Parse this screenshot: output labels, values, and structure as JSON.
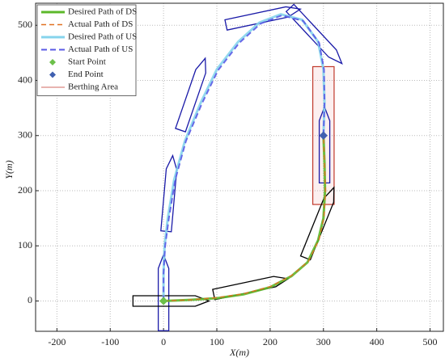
{
  "chart_data": {
    "type": "line",
    "xlabel": "X(m)",
    "ylabel": "Y(m)",
    "xlim": [
      -240,
      525
    ],
    "ylim": [
      -55,
      540
    ],
    "xticks": [
      -200,
      -100,
      0,
      100,
      200,
      300,
      400,
      500
    ],
    "yticks": [
      0,
      100,
      200,
      300,
      400,
      500
    ],
    "grid": true,
    "legend": "upper left",
    "series": [
      {
        "name": "Desired Path of DS",
        "color": "#5cb82a",
        "dash": "none",
        "width": 3,
        "x": [
          0,
          50,
          100,
          150,
          200,
          240,
          270,
          290,
          300,
          303,
          302,
          300
        ],
        "values": [
          0,
          2,
          5,
          12,
          25,
          45,
          70,
          110,
          150,
          200,
          250,
          300
        ]
      },
      {
        "name": "Actual Path of DS",
        "color": "#e07020",
        "dash": "6 4",
        "width": 1.5,
        "x": [
          0,
          50,
          100,
          150,
          200,
          240,
          272,
          292,
          301,
          304,
          302,
          300
        ],
        "values": [
          0,
          2,
          6,
          13,
          26,
          46,
          72,
          112,
          152,
          200,
          250,
          300
        ]
      },
      {
        "name": "Desired Path of US",
        "color": "#86d4ec",
        "dash": "none",
        "width": 3,
        "x": [
          0,
          0,
          2,
          8,
          20,
          40,
          70,
          100,
          140,
          180,
          220,
          260,
          290,
          300,
          302,
          300
        ],
        "values": [
          0,
          50,
          100,
          150,
          220,
          290,
          360,
          420,
          470,
          505,
          520,
          510,
          470,
          420,
          360,
          300
        ]
      },
      {
        "name": "Actual Path of US",
        "color": "#5a5ae6",
        "dash": "7 4",
        "width": 2,
        "x": [
          0,
          0,
          3,
          10,
          22,
          42,
          72,
          102,
          142,
          182,
          222,
          262,
          292,
          301,
          302,
          300
        ],
        "values": [
          0,
          50,
          100,
          150,
          220,
          290,
          358,
          418,
          468,
          503,
          518,
          508,
          468,
          420,
          360,
          300
        ]
      }
    ],
    "start_point": {
      "name": "Start Point",
      "color": "#6cc04a",
      "x": 0,
      "y": 0
    },
    "end_point": {
      "name": "End Point",
      "color": "#4060b0",
      "x": 300,
      "y": 300
    },
    "berthing_area": {
      "name": "Berthing Area",
      "color": "#c0392b",
      "x": [
        280,
        320
      ],
      "y": [
        175,
        425
      ]
    },
    "ships": [
      {
        "x": 0,
        "y": 15,
        "heading": 90,
        "color": "#1a1aa8"
      },
      {
        "x": 11,
        "y": 195,
        "heading": 85,
        "color": "#1a1aa8"
      },
      {
        "x": 55,
        "y": 375,
        "heading": 71,
        "color": "#1a1aa8"
      },
      {
        "x": 187,
        "y": 515,
        "heading": 12,
        "color": "#1a1aa8"
      },
      {
        "x": 286,
        "y": 481,
        "heading": -47,
        "color": "#1a1aa8"
      },
      {
        "x": 302,
        "y": 283,
        "heading": 90,
        "color": "#1a1aa8"
      },
      {
        "x": 14,
        "y": 0,
        "heading": 0,
        "color": "#000000"
      },
      {
        "x": 164,
        "y": 26,
        "heading": 12,
        "color": "#000000"
      },
      {
        "x": 293,
        "y": 142,
        "heading": 68,
        "color": "#000000"
      }
    ]
  }
}
